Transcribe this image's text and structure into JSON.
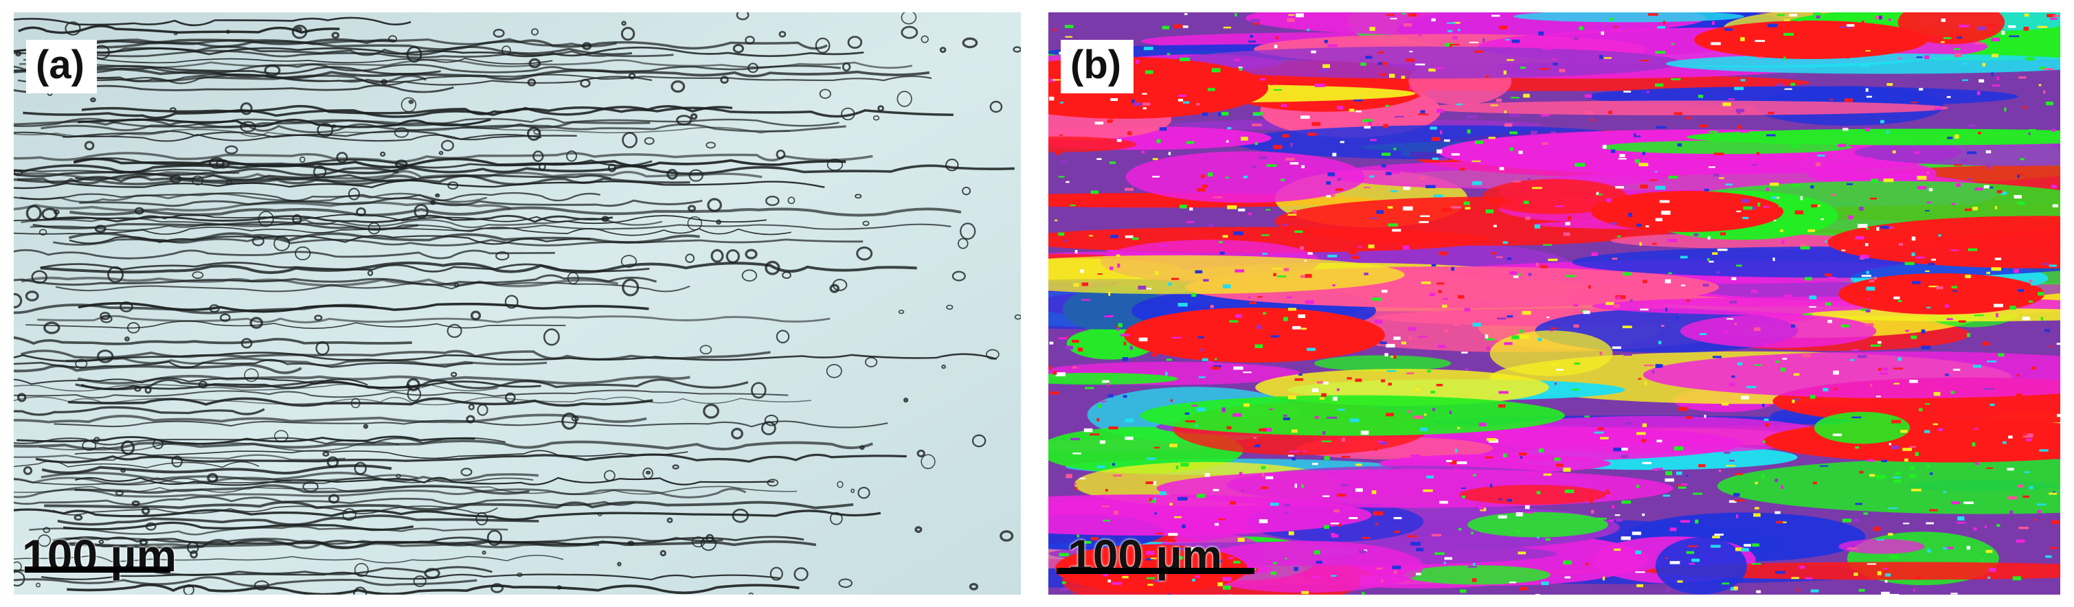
{
  "panels": [
    {
      "label": "(a)",
      "scale_label": "100 µm",
      "image_kind": "optical-micrograph",
      "palette": {
        "background": "#cfe3e6",
        "grain_boundary": "#1b1f1f"
      }
    },
    {
      "label": "(b)",
      "scale_label": "100 µm",
      "image_kind": "ebsd-orientation-map",
      "palette": {
        "red": "#ff1a1a",
        "green": "#22ee22",
        "blue": "#2233dd",
        "magenta": "#ee22dd",
        "purple": "#9933cc",
        "yellow": "#f4ee22",
        "cyan": "#22ddee",
        "pink": "#ff5599"
      }
    }
  ]
}
